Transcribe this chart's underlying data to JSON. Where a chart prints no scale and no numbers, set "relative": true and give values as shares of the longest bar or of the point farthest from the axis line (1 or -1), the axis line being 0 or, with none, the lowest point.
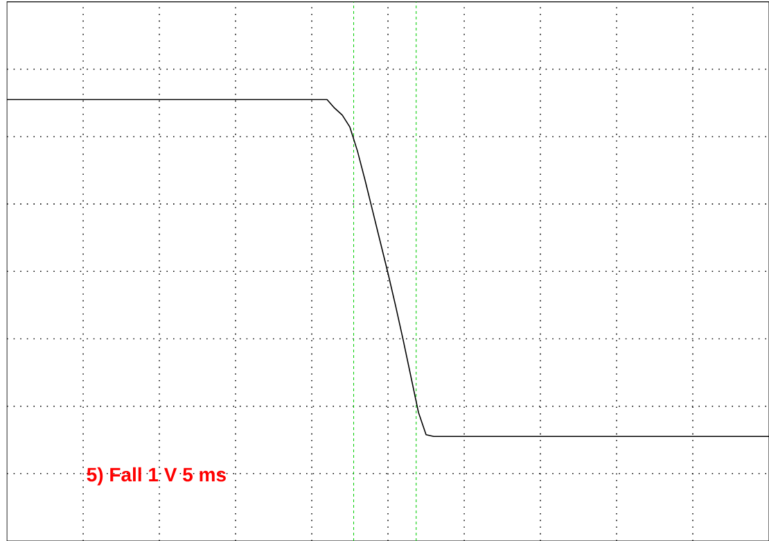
{
  "chart_data": {
    "type": "line",
    "relative": true,
    "annotations": [
      "5) Fall  1  V    5 ms"
    ],
    "categories": [
      null,
      null,
      null,
      null,
      null,
      null,
      null,
      null,
      null,
      null,
      null,
      null,
      null,
      null,
      null,
      null,
      null,
      null,
      null,
      null,
      null,
      null,
      null,
      null,
      null,
      null,
      null,
      null,
      null,
      null,
      null,
      null,
      null,
      null,
      null,
      null,
      null,
      null,
      null,
      null,
      null,
      null,
      null,
      null,
      null,
      null,
      null,
      null,
      null,
      null,
      null,
      null,
      null,
      null,
      null,
      null,
      null,
      null,
      null,
      null,
      null,
      null,
      null,
      null,
      null,
      null,
      null,
      null,
      null,
      null,
      null,
      null,
      null,
      null,
      null,
      null,
      null,
      null,
      null,
      null,
      null,
      null,
      null,
      null,
      null,
      null,
      null,
      null,
      null,
      null,
      null,
      null,
      null,
      null,
      null,
      null,
      null,
      null,
      null,
      null,
      null
    ],
    "series": [
      {
        "color": "#000000",
        "values": [
          1,
          1,
          1,
          1,
          1,
          1,
          1,
          1,
          1,
          1,
          1,
          1,
          1,
          1,
          1,
          1,
          1,
          1,
          1,
          1,
          1,
          1,
          1,
          1,
          1,
          1,
          1,
          1,
          1,
          1,
          1,
          1,
          1,
          1,
          1,
          1,
          1,
          1,
          1,
          1,
          1,
          1,
          1,
          0.95,
          0.91,
          0.84,
          0.7,
          0.53,
          0.35,
          0.17,
          -0.01,
          -0.2,
          -0.4,
          -0.61,
          -0.82,
          -0.95,
          -0.96,
          -0.96,
          -0.96,
          -0.96,
          -0.96,
          -0.96,
          -0.96,
          -0.96,
          -0.96,
          -0.96,
          -0.96,
          -0.96,
          -0.96,
          -0.96,
          -0.96,
          -0.96,
          -0.96,
          -0.96,
          -0.96,
          -0.96,
          -0.96,
          -0.96,
          -0.96,
          -0.96,
          -0.96,
          -0.96,
          -0.96,
          -0.96,
          -0.96,
          -0.96,
          -0.96,
          -0.96,
          -0.96,
          -0.96,
          -0.96,
          -0.96,
          -0.96,
          -0.96,
          -0.96,
          -0.96,
          -0.96,
          -0.96,
          -0.96,
          -0.96,
          -0.96
        ]
      }
    ],
    "grid": true,
    "marker": "none",
    "line_style": "solid"
  }
}
